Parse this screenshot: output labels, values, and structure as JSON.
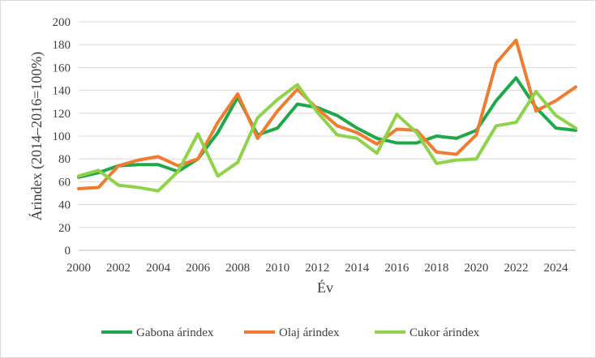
{
  "chart_data": {
    "type": "line",
    "title": "",
    "xlabel": "Év",
    "ylabel": "Árindex (2014–2016=100%)",
    "xlim": [
      2000,
      2025
    ],
    "ylim": [
      0,
      200
    ],
    "x_ticks": [
      2000,
      2002,
      2004,
      2006,
      2008,
      2010,
      2012,
      2014,
      2016,
      2018,
      2020,
      2022,
      2024
    ],
    "y_ticks": [
      0,
      20,
      40,
      60,
      80,
      100,
      120,
      140,
      160,
      180,
      200
    ],
    "grid": "horizontal",
    "legend_position": "bottom",
    "x": [
      2000,
      2001,
      2002,
      2003,
      2004,
      2005,
      2006,
      2007,
      2008,
      2009,
      2010,
      2011,
      2012,
      2013,
      2014,
      2015,
      2016,
      2017,
      2018,
      2019,
      2020,
      2021,
      2022,
      2023,
      2024,
      2025
    ],
    "series": [
      {
        "name": "Gabona árindex",
        "color": "#1ea84a",
        "values": [
          64,
          68,
          74,
          75,
          75,
          69,
          80,
          103,
          134,
          101,
          107,
          128,
          125,
          118,
          107,
          98,
          94,
          94,
          100,
          98,
          105,
          131,
          151,
          125,
          107,
          105
        ]
      },
      {
        "name": "Olaj árindex",
        "color": "#ee7d31",
        "values": [
          54,
          55,
          74,
          79,
          82,
          74,
          80,
          112,
          137,
          98,
          122,
          141,
          124,
          109,
          103,
          93,
          106,
          105,
          86,
          84,
          101,
          164,
          184,
          122,
          131,
          143
        ]
      },
      {
        "name": "Cukor árindex",
        "color": "#8ed34a",
        "values": [
          65,
          70,
          57,
          55,
          52,
          69,
          102,
          65,
          77,
          116,
          132,
          145,
          121,
          101,
          98,
          85,
          119,
          103,
          76,
          79,
          80,
          109,
          112,
          139,
          118,
          107
        ]
      }
    ]
  }
}
